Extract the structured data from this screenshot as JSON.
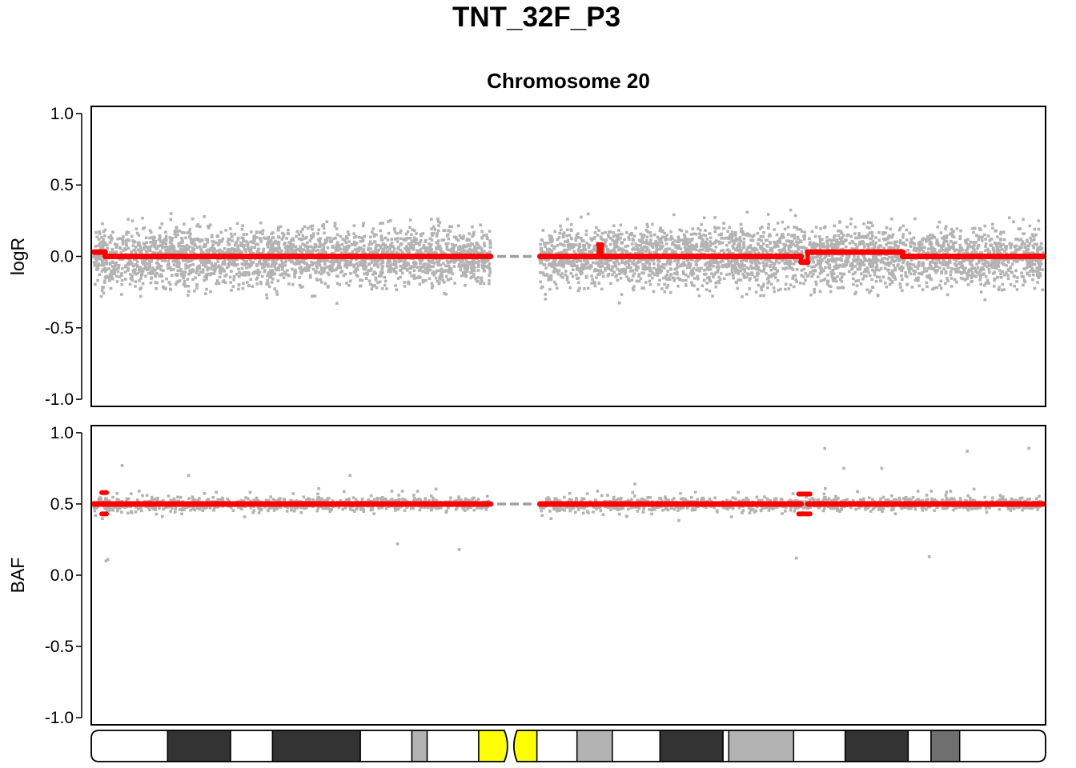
{
  "figure": {
    "title": "TNT_32F_P3",
    "subtitle": "Chromosome 20"
  },
  "colors": {
    "points": "#b3b3b3",
    "segments": "#ff0000",
    "centromere_gap": "#a0a0a0",
    "centromere_band": "#ffff00",
    "frame": "#000000"
  },
  "chart_data": [
    {
      "type": "scatter",
      "ylabel": "logR",
      "ylim": [
        -1.05,
        1.05
      ],
      "yticks": [
        "1.0",
        "0.5",
        "0.0",
        "-0.5",
        "-1.0"
      ],
      "ytick_values": [
        1.0,
        0.5,
        0.0,
        -0.5,
        -1.0
      ],
      "xlim": [
        0,
        1
      ],
      "grid": false,
      "scatter_points": {
        "arms": [
          [
            0.0,
            0.418
          ],
          [
            0.47,
            1.0
          ]
        ],
        "center": 0.0,
        "spread": 0.16,
        "count": 5600
      },
      "centromere_gap": {
        "x": [
          0.425,
          0.465
        ],
        "y": 0.0
      },
      "segments": [
        {
          "x": [
            0.0,
            0.012
          ],
          "y": 0.03
        },
        {
          "x": [
            0.012,
            0.418
          ],
          "y": 0.0
        },
        {
          "x": [
            0.47,
            0.532
          ],
          "y": 0.0
        },
        {
          "x": [
            0.532,
            0.535
          ],
          "y": 0.08
        },
        {
          "x": [
            0.535,
            0.745
          ],
          "y": 0.0
        },
        {
          "x": [
            0.745,
            0.752
          ],
          "y": -0.04
        },
        {
          "x": [
            0.752,
            0.852
          ],
          "y": 0.03
        },
        {
          "x": [
            0.852,
            1.0
          ],
          "y": 0.0
        }
      ]
    },
    {
      "type": "scatter",
      "ylabel": "BAF",
      "ylim": [
        -1.05,
        1.05
      ],
      "yticks": [
        "1.0",
        "0.5",
        "0.0",
        "-0.5",
        "-1.0"
      ],
      "ytick_values": [
        1.0,
        0.5,
        0.0,
        -0.5,
        -1.0
      ],
      "xlim": [
        0,
        1
      ],
      "grid": false,
      "scatter_points": {
        "arms": [
          [
            0.0,
            0.418
          ],
          [
            0.47,
            1.0
          ]
        ],
        "center": 0.5,
        "spread": 0.035,
        "count": 2200
      },
      "outliers": [
        {
          "x": 0.013,
          "y": 0.1
        },
        {
          "x": 0.015,
          "y": 0.11
        },
        {
          "x": 0.03,
          "y": 0.77
        },
        {
          "x": 0.1,
          "y": 0.7
        },
        {
          "x": 0.27,
          "y": 0.7
        },
        {
          "x": 0.32,
          "y": 0.22
        },
        {
          "x": 0.385,
          "y": 0.18
        },
        {
          "x": 0.57,
          "y": 0.64
        },
        {
          "x": 0.74,
          "y": 0.12
        },
        {
          "x": 0.77,
          "y": 0.89
        },
        {
          "x": 0.79,
          "y": 0.75
        },
        {
          "x": 0.83,
          "y": 0.75
        },
        {
          "x": 0.88,
          "y": 0.13
        },
        {
          "x": 0.92,
          "y": 0.87
        },
        {
          "x": 0.985,
          "y": 0.89
        }
      ],
      "centromere_gap": {
        "x": [
          0.425,
          0.465
        ],
        "y": 0.5
      },
      "segments": [
        {
          "x": [
            0.0,
            0.418
          ],
          "y": 0.5
        },
        {
          "x": [
            0.47,
            0.745
          ],
          "y": 0.5
        },
        {
          "x": [
            0.752,
            1.0
          ],
          "y": 0.5
        }
      ],
      "marks": [
        {
          "x": 0.011,
          "y": 0.58
        },
        {
          "x": 0.011,
          "y": 0.43
        },
        {
          "x": 0.745,
          "y": 0.57
        },
        {
          "x": 0.752,
          "y": 0.57
        },
        {
          "x": 0.745,
          "y": 0.43
        },
        {
          "x": 0.752,
          "y": 0.43
        }
      ]
    }
  ],
  "ideogram": {
    "xlim": [
      0,
      1
    ],
    "centromere": 0.4395,
    "bands": [
      {
        "start": 0.0,
        "end": 0.08,
        "color": "#ffffff"
      },
      {
        "start": 0.08,
        "end": 0.146,
        "color": "#333333"
      },
      {
        "start": 0.146,
        "end": 0.19,
        "color": "#ffffff"
      },
      {
        "start": 0.19,
        "end": 0.282,
        "color": "#333333"
      },
      {
        "start": 0.282,
        "end": 0.336,
        "color": "#ffffff"
      },
      {
        "start": 0.336,
        "end": 0.352,
        "color": "#b3b3b3"
      },
      {
        "start": 0.352,
        "end": 0.406,
        "color": "#ffffff"
      },
      {
        "start": 0.406,
        "end": 0.4395,
        "color": "#ffff00"
      },
      {
        "start": 0.4395,
        "end": 0.467,
        "color": "#ffff00"
      },
      {
        "start": 0.467,
        "end": 0.509,
        "color": "#ffffff"
      },
      {
        "start": 0.509,
        "end": 0.546,
        "color": "#b3b3b3"
      },
      {
        "start": 0.546,
        "end": 0.596,
        "color": "#ffffff"
      },
      {
        "start": 0.596,
        "end": 0.662,
        "color": "#333333"
      },
      {
        "start": 0.662,
        "end": 0.668,
        "color": "#ffffff"
      },
      {
        "start": 0.668,
        "end": 0.736,
        "color": "#b3b3b3"
      },
      {
        "start": 0.736,
        "end": 0.79,
        "color": "#ffffff"
      },
      {
        "start": 0.79,
        "end": 0.856,
        "color": "#333333"
      },
      {
        "start": 0.856,
        "end": 0.88,
        "color": "#ffffff"
      },
      {
        "start": 0.88,
        "end": 0.91,
        "color": "#6f6f6f"
      },
      {
        "start": 0.91,
        "end": 1.0,
        "color": "#ffffff"
      }
    ]
  }
}
